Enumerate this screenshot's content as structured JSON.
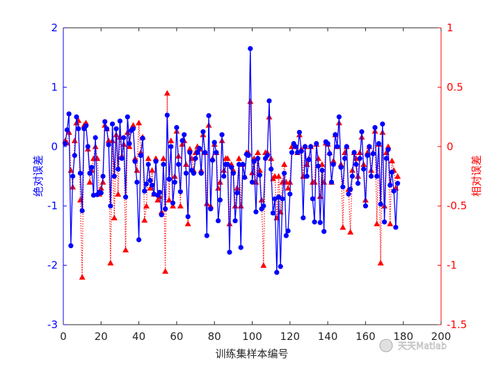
{
  "chart_data": {
    "type": "line",
    "xlabel": "训练集样本编号",
    "ylabel_left": "绝对误差",
    "ylabel_right": "相对误差",
    "xlim": [
      0,
      200
    ],
    "ylim_left": [
      -3,
      2
    ],
    "ylim_right": [
      -1.5,
      1
    ],
    "x_ticks": [
      "0",
      "20",
      "40",
      "60",
      "80",
      "100",
      "120",
      "140",
      "160",
      "180",
      "200"
    ],
    "y_ticks_left": [
      "2",
      "1",
      "0",
      "-1",
      "-2",
      "-3"
    ],
    "y_ticks_right": [
      "1",
      "0.5",
      "0",
      "-0.5",
      "-1",
      "-1.5"
    ],
    "grid": false,
    "series": [
      {
        "axis": "left",
        "color": "#0000ff",
        "line_style": "solid",
        "marker": "circle",
        "values": [
          0.05,
          0.28,
          0.55,
          -1.67,
          -0.5,
          -0.15,
          0.5,
          0.3,
          -0.45,
          -1.08,
          0.3,
          0.35,
          0.0,
          -0.45,
          -0.35,
          -0.82,
          0.15,
          -0.81,
          -0.77,
          -0.78,
          -0.5,
          0.42,
          0.3,
          0.03,
          -1.0,
          0.38,
          -0.5,
          0.3,
          -0.38,
          0.43,
          -0.2,
          0.15,
          -0.85,
          0.5,
          0.05,
          0.27,
          0.3,
          -0.25,
          -0.6,
          -1.57,
          -0.15,
          0.14,
          -0.75,
          -0.63,
          -0.3,
          -0.57,
          -0.65,
          -0.8,
          -0.25,
          -0.82,
          -0.77,
          -1.15,
          -0.3,
          -1.05,
          0.53,
          -0.55,
          0.0,
          -0.95,
          -0.6,
          0.32,
          -0.3,
          -0.76,
          0.1,
          0.2,
          -0.45,
          -1.18,
          -0.1,
          -0.4,
          -0.45,
          -0.2,
          -0.1,
          -0.03,
          -0.45,
          0.25,
          -0.1,
          -1.5,
          0.52,
          -1.05,
          -0.23,
          0.07,
          -0.1,
          -1.25,
          -0.9,
          0.2,
          -0.5,
          -0.3,
          -0.3,
          -1.78,
          -0.35,
          -0.45,
          -1.25,
          -0.78,
          -0.3,
          -1.7,
          -0.3,
          -0.52,
          -0.13,
          -0.15,
          1.65,
          -0.6,
          -0.25,
          -1.1,
          -0.2,
          -0.48,
          -1.05,
          -1.0,
          -0.2,
          -0.15,
          0.77,
          -0.38,
          -1.12,
          -0.88,
          -2.12,
          -0.85,
          -2.02,
          -0.88,
          -0.45,
          -1.5,
          -1.42,
          -0.8,
          -0.1,
          0.05,
          0.0,
          -0.1,
          0.24,
          -0.08,
          -1.2,
          0.0,
          -0.5,
          -0.22,
          0.0,
          -0.88,
          -1.27,
          0.05,
          -0.33,
          -1.28,
          -0.4,
          -1.43,
          0.08,
          0.05,
          -0.12,
          -0.6,
          -0.3,
          0.2,
          0.0,
          0.5,
          -0.35,
          -0.68,
          -0.2,
          0.0,
          -0.8,
          -0.72,
          -0.5,
          -0.1,
          -0.3,
          -0.62,
          -0.2,
          0.25,
          -0.38,
          -1.0,
          -0.15,
          0.0,
          -0.5,
          -0.12,
          0.32,
          -0.5,
          0.05,
          -0.97,
          0.38,
          -1.27,
          -0.2,
          -0.05,
          -0.65,
          -0.43,
          -0.75,
          -1.36,
          -0.62
        ],
        "x_start": 1
      },
      {
        "axis": "right",
        "color": "#ff0000",
        "line_style": "dotted",
        "marker": "triangle",
        "values": [
          0.05,
          0.03,
          0.12,
          -0.2,
          -0.34,
          0.05,
          0.2,
          0.22,
          -0.45,
          -1.1,
          0.18,
          0.2,
          -0.02,
          -0.3,
          -0.2,
          -0.1,
          0.0,
          -0.1,
          -0.4,
          -0.35,
          -0.3,
          0.18,
          0.15,
          0.05,
          -0.98,
          0.05,
          -0.6,
          0.1,
          -0.4,
          0.08,
          -0.08,
          0.02,
          -0.87,
          0.12,
          0.0,
          0.15,
          0.18,
          -0.1,
          -0.2,
          0.2,
          -0.05,
          0.08,
          -0.62,
          -0.5,
          -0.1,
          -0.35,
          -0.2,
          -0.4,
          -0.1,
          -0.45,
          -0.42,
          -0.55,
          -0.1,
          -1.05,
          0.45,
          -0.45,
          0.05,
          -0.5,
          -0.25,
          0.13,
          -0.08,
          -0.5,
          0.02,
          0.05,
          -0.15,
          -0.65,
          -0.02,
          -0.1,
          -0.2,
          -0.05,
          0.0,
          -0.02,
          -0.2,
          0.1,
          -0.05,
          -0.48,
          0.18,
          -0.5,
          -0.1,
          0.02,
          -0.05,
          -0.35,
          -0.3,
          0.05,
          -0.2,
          -0.1,
          -0.1,
          -0.65,
          -0.15,
          -0.2,
          -0.5,
          -0.35,
          -0.1,
          -0.5,
          -0.15,
          -0.25,
          -0.05,
          -0.05,
          0.38,
          -0.22,
          -0.1,
          -0.3,
          -0.05,
          -0.2,
          -0.45,
          -1.0,
          -0.05,
          -0.05,
          0.25,
          -0.1,
          -0.27,
          -0.25,
          -0.6,
          -0.25,
          -0.55,
          -0.3,
          -0.15,
          -0.3,
          -0.35,
          -0.3,
          0.0,
          0.02,
          0.0,
          -0.05,
          0.1,
          -0.02,
          -0.25,
          0.0,
          -0.15,
          -0.1,
          0.0,
          -0.3,
          -0.3,
          0.02,
          -0.1,
          -0.42,
          -0.15,
          -0.3,
          0.03,
          0.02,
          -0.05,
          -0.3,
          -0.12,
          0.1,
          0.0,
          0.2,
          -0.15,
          -0.68,
          -0.05,
          0.0,
          -0.36,
          -0.72,
          -0.2,
          -0.05,
          -0.1,
          -0.25,
          -0.05,
          0.08,
          -0.15,
          -0.45,
          -0.05,
          0.0,
          -0.2,
          -0.05,
          0.13,
          -0.65,
          0.02,
          -0.98,
          0.12,
          -0.5,
          -0.05,
          0.0,
          -0.65,
          -0.12,
          -0.2,
          -0.35,
          -0.25
        ],
        "x_start": 1
      }
    ]
  },
  "watermark": "天天Matlab"
}
